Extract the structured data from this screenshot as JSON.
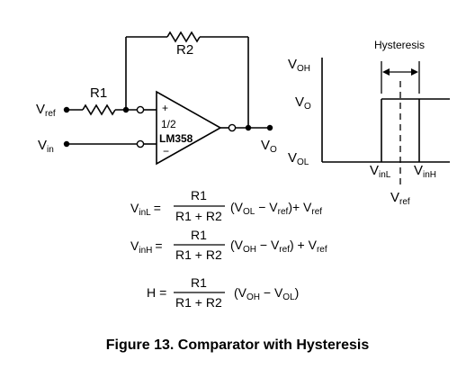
{
  "circuit": {
    "r1": "R1",
    "r2": "R2",
    "vref_main": "V",
    "vref_sub": "ref",
    "vin_main": "V",
    "vin_sub": "in",
    "vo_main": "V",
    "vo_sub": "O",
    "plus": "+",
    "minus": "−",
    "half": "1/2",
    "opamp": "LM358"
  },
  "graph": {
    "hysteresis": "Hysteresis",
    "voh_main": "V",
    "voh_sub": "OH",
    "vo_main": "V",
    "vo_sub": "O",
    "vol_main": "V",
    "vol_sub": "OL",
    "vinl_main": "V",
    "vinl_sub": "inL",
    "vinh_main": "V",
    "vinh_sub": "inH",
    "vref_main": "V",
    "vref_sub": "ref"
  },
  "equations": {
    "eq1": {
      "lhs_main": "V",
      "lhs_sub": "inL",
      "eqsign": "=",
      "num": "R1",
      "den": "R1 + R2",
      "t1": "(V",
      "t1_sub": "OL",
      "t2": " − V",
      "t2_sub": "ref",
      "t3": ")+ V",
      "t3_sub": "ref"
    },
    "eq2": {
      "lhs_main": "V",
      "lhs_sub": "inH",
      "eqsign": "=",
      "num": "R1",
      "den": "R1 + R2",
      "t1": "(V",
      "t1_sub": "OH",
      "t2": " − V",
      "t2_sub": "ref",
      "t3": ") + V",
      "t3_sub": "ref"
    },
    "eq3": {
      "lhs_main": "H",
      "eqsign": "=",
      "num": "R1",
      "den": "R1 + R2",
      "t1": "(V",
      "t1_sub": "OH",
      "t2": " − V",
      "t2_sub": "OL",
      "t3": ")"
    }
  },
  "caption": "Figure 13. Comparator with Hysteresis"
}
